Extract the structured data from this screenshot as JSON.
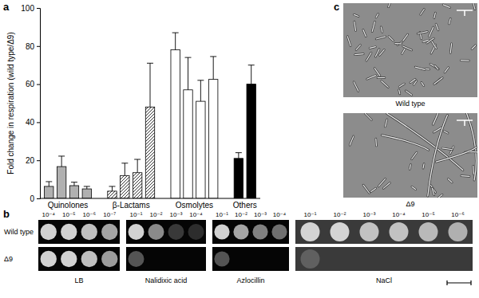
{
  "chart_data": {
    "type": "bar",
    "y_label": "Fold change in respiration (wild type/Δ9)",
    "categories": [
      "Quinolones",
      "β-Lactams",
      "Osmolytes",
      "Others"
    ],
    "values": [
      [
        6.3,
        16.7,
        6.7,
        5.0
      ],
      [
        3.8,
        12.0,
        13.5,
        48.0
      ],
      [
        78.0,
        57.0,
        51.0,
        62.5
      ],
      [
        21.0,
        60.0
      ]
    ],
    "errors": [
      [
        2.5,
        5.5,
        1.8,
        1.3
      ],
      [
        2.5,
        6.5,
        7.0,
        23.0
      ],
      [
        9.0,
        17.0,
        11.0,
        12.0
      ],
      [
        3.0,
        10.0
      ]
    ],
    "colors": [
      "#b0b0b0",
      "#ffffff",
      "#ffffff",
      "#000000"
    ],
    "ylim": [
      0,
      100
    ],
    "yticks": [
      0,
      20,
      40,
      60,
      80,
      100
    ],
    "grid": false
  },
  "panel_labels": [
    "a",
    "b",
    "c"
  ],
  "spot_assay": {
    "rows": [
      "Wild type",
      "Δ9"
    ],
    "plates": [
      {
        "label": "LB",
        "dilutions": [
          "10⁻⁴",
          "10⁻⁵",
          "10⁻⁶",
          "10⁻⁷"
        ]
      },
      {
        "label": "Nalidixic acid",
        "dilutions": [
          "10⁻¹",
          "10⁻²",
          "10⁻³",
          "10⁻⁴"
        ]
      },
      {
        "label": "Azlocillin",
        "dilutions": [
          "10⁻¹",
          "10⁻²",
          "10⁻³",
          "10⁻⁴"
        ]
      },
      {
        "label": "NaCl",
        "dilutions": [
          "10⁻¹",
          "10⁻²",
          "10⁻³",
          "10⁻⁴",
          "10⁻⁵",
          "10⁻⁶"
        ]
      }
    ]
  },
  "micrographs": {
    "labels": [
      "Wild type",
      "Δ9"
    ]
  }
}
